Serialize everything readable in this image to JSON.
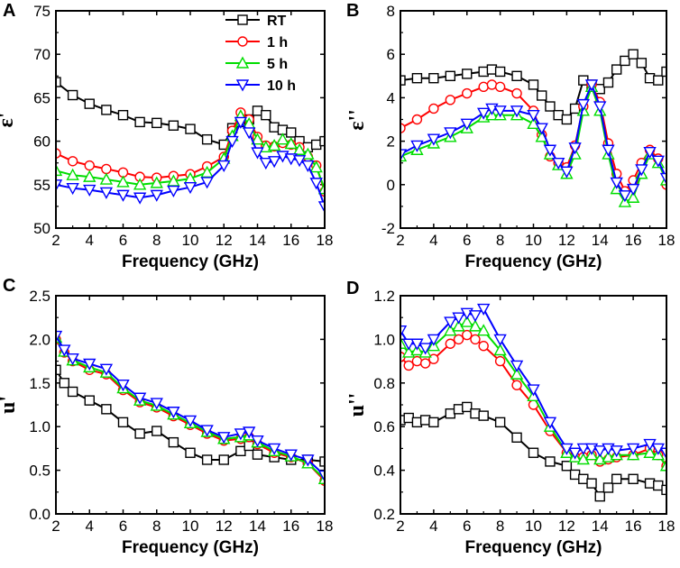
{
  "figure": {
    "x_title": "Frequency (GHz)"
  },
  "legend": [
    {
      "label": "RT",
      "color": "#000000",
      "marker": "square"
    },
    {
      "label": "1 h",
      "color": "#ff0000",
      "marker": "circle"
    },
    {
      "label": "5 h",
      "color": "#00dd00",
      "marker": "triangle-up"
    },
    {
      "label": "10 h",
      "color": "#0000ff",
      "marker": "triangle-down"
    }
  ],
  "chart_data": [
    {
      "panel": "A",
      "type": "line",
      "ylabel": "ε'",
      "xlabel": "Frequency (GHz)",
      "xlim": [
        2,
        18
      ],
      "ylim": [
        50,
        75
      ],
      "xticks": [
        "2",
        "4",
        "6",
        "8",
        "10",
        "12",
        "14",
        "16",
        "18"
      ],
      "yticks": [
        "50",
        "55",
        "60",
        "65",
        "70",
        "75"
      ],
      "x": [
        2,
        3,
        4,
        5,
        6,
        7,
        8,
        9,
        10,
        11,
        12,
        12.5,
        13,
        13.5,
        14,
        14.5,
        15,
        15.5,
        16,
        16.5,
        17,
        17.5,
        18
      ],
      "series": [
        {
          "name": "RT",
          "values": [
            66.8,
            65.3,
            64.3,
            63.6,
            63.0,
            62.2,
            62.1,
            61.8,
            61.4,
            60.2,
            59.6,
            61.5,
            62.2,
            62.5,
            63.5,
            63.0,
            61.6,
            61.3,
            61.0,
            60.0,
            59.3,
            59.6,
            60.0
          ]
        },
        {
          "name": "1 h",
          "values": [
            58.6,
            57.7,
            57.2,
            56.8,
            56.4,
            55.9,
            55.8,
            56.0,
            56.2,
            57.1,
            58.2,
            61.2,
            63.3,
            62.5,
            60.5,
            59.5,
            59.4,
            59.8,
            59.6,
            59.3,
            58.2,
            57.2,
            54.2
          ]
        },
        {
          "name": "5 h",
          "values": [
            56.6,
            56.1,
            55.9,
            55.6,
            55.3,
            55.0,
            55.2,
            55.4,
            55.7,
            56.4,
            58.0,
            60.6,
            62.9,
            62.0,
            60.2,
            59.3,
            59.5,
            60.2,
            59.7,
            59.0,
            58.5,
            57.0,
            54.5
          ]
        },
        {
          "name": "10 h",
          "values": [
            55.0,
            54.6,
            54.4,
            54.1,
            53.8,
            53.5,
            53.8,
            54.3,
            54.7,
            55.3,
            57.2,
            60.0,
            62.2,
            61.0,
            58.7,
            57.5,
            57.7,
            58.3,
            58.0,
            57.8,
            57.2,
            55.2,
            52.5
          ]
        }
      ]
    },
    {
      "panel": "B",
      "type": "line",
      "ylabel": "ε''",
      "xlabel": "Frequency (GHz)",
      "xlim": [
        2,
        18
      ],
      "ylim": [
        -2,
        8
      ],
      "xticks": [
        "2",
        "4",
        "6",
        "8",
        "10",
        "12",
        "14",
        "16",
        "18"
      ],
      "yticks": [
        "-2",
        "0",
        "2",
        "4",
        "6",
        "8"
      ],
      "x": [
        2,
        3,
        4,
        5,
        6,
        7,
        7.5,
        8,
        9,
        10,
        10.5,
        11,
        11.5,
        12,
        12.5,
        13,
        13.5,
        14,
        14.5,
        15,
        15.5,
        16,
        16.5,
        17,
        17.5,
        18
      ],
      "series": [
        {
          "name": "RT",
          "values": [
            4.8,
            4.9,
            4.9,
            5.0,
            5.1,
            5.2,
            5.3,
            5.2,
            5.0,
            4.6,
            4.1,
            3.6,
            3.2,
            3.0,
            3.5,
            4.8,
            4.6,
            4.4,
            4.7,
            5.3,
            5.7,
            6.0,
            5.6,
            4.9,
            4.8,
            5.2
          ]
        },
        {
          "name": "1 h",
          "values": [
            2.6,
            3.0,
            3.5,
            3.9,
            4.2,
            4.5,
            4.6,
            4.5,
            4.2,
            3.4,
            2.3,
            1.3,
            1.0,
            0.8,
            1.8,
            3.6,
            4.6,
            3.8,
            1.9,
            0.5,
            -0.3,
            0.2,
            1.0,
            1.6,
            1.2,
            0.0
          ]
        },
        {
          "name": "5 h",
          "values": [
            1.3,
            1.6,
            1.9,
            2.2,
            2.6,
            3.1,
            3.2,
            3.2,
            3.2,
            2.8,
            2.2,
            1.4,
            0.9,
            0.5,
            1.4,
            3.4,
            4.5,
            3.4,
            1.4,
            -0.2,
            -0.8,
            -0.6,
            0.5,
            1.4,
            1.0,
            0.2
          ]
        },
        {
          "name": "10 h",
          "values": [
            1.4,
            1.8,
            2.1,
            2.4,
            2.8,
            3.3,
            3.5,
            3.4,
            3.4,
            3.2,
            2.6,
            1.6,
            1.0,
            0.6,
            1.7,
            3.7,
            4.6,
            3.6,
            1.6,
            0.1,
            -0.5,
            -0.2,
            0.7,
            1.5,
            1.1,
            0.3
          ]
        }
      ]
    },
    {
      "panel": "C",
      "type": "line",
      "ylabel": "u'",
      "xlabel": "Frequency (GHz)",
      "xlim": [
        2,
        18
      ],
      "ylim": [
        0.0,
        2.5
      ],
      "xticks": [
        "2",
        "4",
        "6",
        "8",
        "10",
        "12",
        "14",
        "16",
        "18"
      ],
      "yticks": [
        "0.0",
        "0.5",
        "1.0",
        "1.5",
        "2.0",
        "2.5"
      ],
      "x": [
        2,
        2.5,
        3,
        4,
        5,
        6,
        7,
        8,
        9,
        10,
        11,
        12,
        13,
        13.5,
        14,
        15,
        16,
        17,
        18
      ],
      "series": [
        {
          "name": "RT",
          "values": [
            1.65,
            1.5,
            1.4,
            1.3,
            1.2,
            1.05,
            0.92,
            0.95,
            0.82,
            0.7,
            0.62,
            0.62,
            0.72,
            0.78,
            0.68,
            0.65,
            0.62,
            0.62,
            0.6
          ]
        },
        {
          "name": "1 h",
          "values": [
            2.0,
            1.85,
            1.75,
            1.65,
            1.6,
            1.42,
            1.28,
            1.22,
            1.12,
            1.02,
            0.92,
            0.84,
            0.86,
            0.88,
            0.8,
            0.7,
            0.65,
            0.58,
            0.38
          ]
        },
        {
          "name": "5 h",
          "values": [
            2.02,
            1.86,
            1.76,
            1.68,
            1.62,
            1.44,
            1.3,
            1.24,
            1.14,
            1.04,
            0.94,
            0.86,
            0.88,
            0.9,
            0.82,
            0.72,
            0.66,
            0.58,
            0.4
          ]
        },
        {
          "name": "10 h",
          "values": [
            2.04,
            1.88,
            1.78,
            1.72,
            1.66,
            1.48,
            1.33,
            1.27,
            1.17,
            1.07,
            0.96,
            0.88,
            0.92,
            0.94,
            0.84,
            0.75,
            0.68,
            0.62,
            0.44
          ]
        }
      ]
    },
    {
      "panel": "D",
      "type": "line",
      "ylabel": "u''",
      "xlabel": "Frequency (GHz)",
      "xlim": [
        2,
        18
      ],
      "ylim": [
        0.2,
        1.2
      ],
      "xticks": [
        "2",
        "4",
        "6",
        "8",
        "10",
        "12",
        "14",
        "16",
        "18"
      ],
      "yticks": [
        "0.2",
        "0.4",
        "0.6",
        "0.8",
        "1.0",
        "1.2"
      ],
      "x": [
        2,
        2.5,
        3,
        3.5,
        4,
        5,
        5.5,
        6,
        6.5,
        7,
        8,
        9,
        10,
        11,
        12,
        12.5,
        13,
        13.5,
        14,
        14.5,
        15,
        16,
        17,
        17.5,
        18
      ],
      "series": [
        {
          "name": "RT",
          "values": [
            0.63,
            0.64,
            0.62,
            0.63,
            0.62,
            0.66,
            0.68,
            0.69,
            0.66,
            0.65,
            0.62,
            0.55,
            0.48,
            0.44,
            0.42,
            0.38,
            0.36,
            0.34,
            0.28,
            0.32,
            0.36,
            0.36,
            0.34,
            0.33,
            0.31
          ]
        },
        {
          "name": "1 h",
          "values": [
            0.92,
            0.88,
            0.9,
            0.89,
            0.91,
            0.98,
            1.0,
            1.02,
            1.0,
            0.97,
            0.9,
            0.79,
            0.7,
            0.58,
            0.48,
            0.46,
            0.46,
            0.47,
            0.44,
            0.45,
            0.46,
            0.47,
            0.5,
            0.47,
            0.42
          ]
        },
        {
          "name": "5 h",
          "values": [
            0.98,
            0.94,
            0.95,
            0.94,
            0.97,
            1.04,
            1.06,
            1.08,
            1.06,
            1.04,
            0.95,
            0.84,
            0.74,
            0.6,
            0.48,
            0.46,
            0.45,
            0.47,
            0.45,
            0.46,
            0.47,
            0.47,
            0.48,
            0.47,
            0.42
          ]
        },
        {
          "name": "10 h",
          "values": [
            1.04,
            0.98,
            0.98,
            0.96,
            1.0,
            1.08,
            1.1,
            1.12,
            1.11,
            1.14,
            1.0,
            0.88,
            0.77,
            0.62,
            0.5,
            0.48,
            0.5,
            0.5,
            0.49,
            0.5,
            0.49,
            0.5,
            0.52,
            0.5,
            0.48
          ]
        }
      ]
    }
  ]
}
